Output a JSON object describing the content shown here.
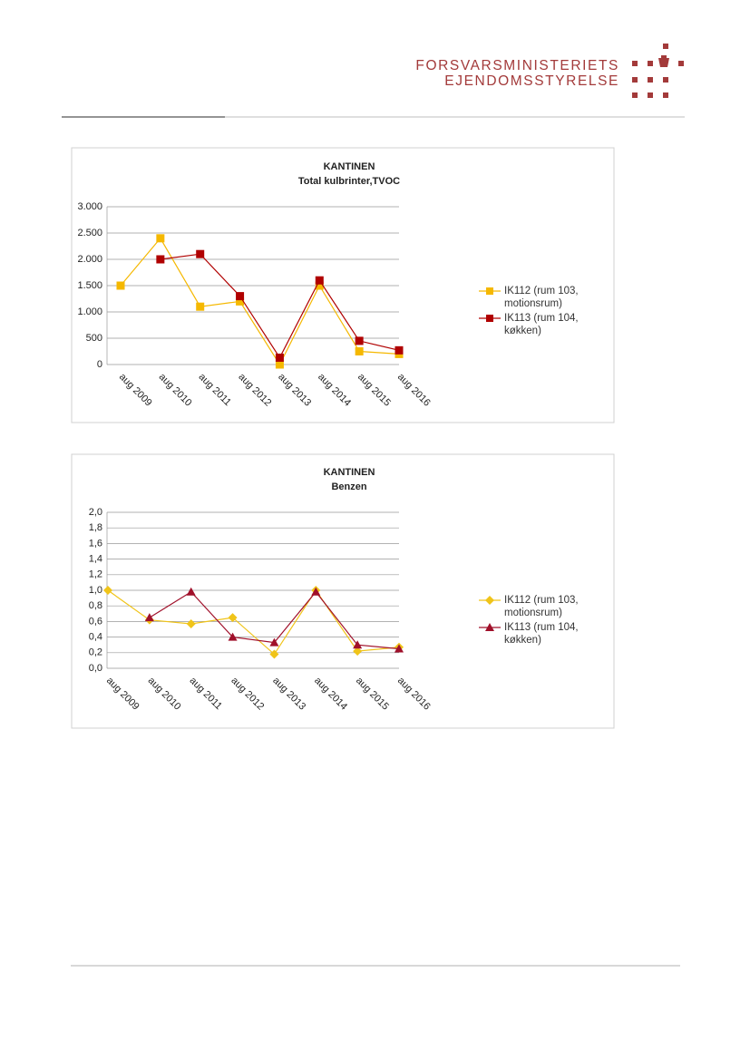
{
  "header": {
    "line1": "FORSVARSMINISTERIETS",
    "line2": "EJENDOMSSTYRELSE"
  },
  "chart_data": [
    {
      "type": "line",
      "title": "KANTINEN",
      "subtitle": "Total kulbrinter,TVOC",
      "categories": [
        "aug 2009",
        "aug 2010",
        "aug 2011",
        "aug 2012",
        "aug 2013",
        "aug 2014",
        "aug 2015",
        "aug 2016"
      ],
      "series": [
        {
          "name": "IK112 (rum 103, motionsrum)",
          "color": "#f5b800",
          "marker": "square",
          "values": [
            1500,
            2400,
            1100,
            1200,
            0,
            1500,
            250,
            200
          ]
        },
        {
          "name": "IK113 (rum 104, køkken)",
          "color": "#b00000",
          "marker": "square",
          "values": [
            null,
            2000,
            2100,
            1300,
            130,
            1600,
            450,
            270
          ]
        }
      ],
      "ylim": [
        0,
        3000
      ],
      "yticks": [
        0,
        500,
        {
          "value": 1000,
          "label": "1.000"
        },
        {
          "value": 1500,
          "label": "1.500"
        },
        {
          "value": 2000,
          "label": "2.000"
        },
        {
          "value": 2500,
          "label": "2.500"
        },
        {
          "value": 3000,
          "label": "3.000"
        }
      ],
      "grid": true,
      "legend": "right"
    },
    {
      "type": "line",
      "title": "KANTINEN",
      "subtitle": "Benzen",
      "categories": [
        "aug 2009",
        "aug 2010",
        "aug 2011",
        "aug 2012",
        "aug 2013",
        "aug 2014",
        "aug 2015",
        "aug 2016"
      ],
      "series": [
        {
          "name": "IK112 (rum 103, motionsrum)",
          "color": "#f0c419",
          "marker": "diamond",
          "values": [
            1.0,
            0.62,
            0.57,
            0.65,
            0.18,
            1.0,
            0.22,
            0.27
          ]
        },
        {
          "name": "IK113 (rum 104, køkken)",
          "color": "#a0102a",
          "marker": "triangle",
          "values": [
            null,
            0.65,
            0.98,
            0.4,
            0.33,
            0.98,
            0.3,
            0.25
          ]
        }
      ],
      "ylim": [
        0,
        2.0
      ],
      "yticks": [
        {
          "value": 0,
          "label": "0,0"
        },
        {
          "value": 0.2,
          "label": "0,2"
        },
        {
          "value": 0.4,
          "label": "0,4"
        },
        {
          "value": 0.6,
          "label": "0,6"
        },
        {
          "value": 0.8,
          "label": "0,8"
        },
        {
          "value": 1.0,
          "label": "1,0"
        },
        {
          "value": 1.2,
          "label": "1,2"
        },
        {
          "value": 1.4,
          "label": "1,4"
        },
        {
          "value": 1.6,
          "label": "1,6"
        },
        {
          "value": 1.8,
          "label": "1,8"
        },
        {
          "value": 2.0,
          "label": "2,0"
        }
      ],
      "grid": true,
      "legend": "right"
    }
  ]
}
